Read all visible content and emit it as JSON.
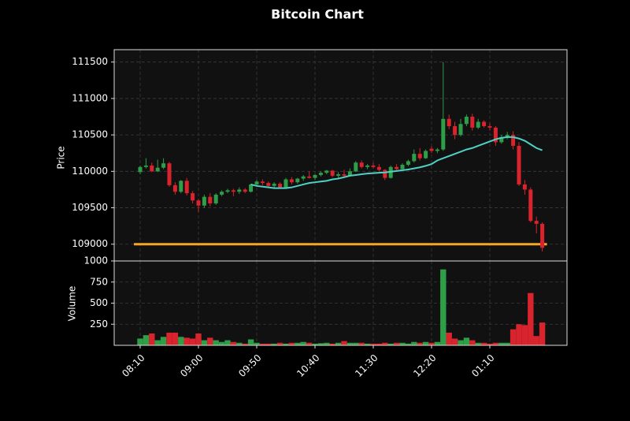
{
  "chart_data": {
    "type": "candlestick",
    "title": "Bitcoin Chart",
    "ylabel": "Price",
    "y2label": "Volume",
    "categories": [
      "08:10",
      null,
      null,
      null,
      null,
      null,
      null,
      null,
      null,
      null,
      "09:00",
      null,
      null,
      null,
      null,
      null,
      null,
      null,
      null,
      null,
      "09:50",
      null,
      null,
      null,
      null,
      null,
      null,
      null,
      null,
      null,
      "10:40",
      null,
      null,
      null,
      null,
      null,
      null,
      null,
      null,
      null,
      "11:30",
      null,
      null,
      null,
      null,
      null,
      null,
      null,
      null,
      null,
      "12:20",
      null,
      null,
      null,
      null,
      null,
      null,
      null,
      null,
      null,
      "01:10",
      null,
      null,
      null,
      null,
      null,
      null,
      null,
      null,
      null
    ],
    "open": [
      109990,
      110060,
      110080,
      110000,
      110050,
      110110,
      109810,
      109720,
      109870,
      109700,
      109600,
      109530,
      109650,
      109560,
      109680,
      109720,
      109740,
      109720,
      109750,
      109720,
      109820,
      109860,
      109840,
      109800,
      109830,
      109780,
      109890,
      109850,
      109900,
      109930,
      109910,
      109950,
      109980,
      110010,
      109940,
      109960,
      109940,
      110000,
      110120,
      110060,
      110080,
      110060,
      110020,
      109910,
      110060,
      110030,
      110090,
      110140,
      110240,
      110180,
      110310,
      110280,
      110300,
      110720,
      110620,
      110500,
      110650,
      110750,
      110600,
      110680,
      110620,
      110600,
      110400,
      110470,
      110500,
      110350,
      109820,
      109750,
      109320,
      109280
    ],
    "high": [
      110080,
      110180,
      110120,
      110160,
      110180,
      110130,
      109850,
      109880,
      109910,
      109730,
      109620,
      109680,
      109700,
      109700,
      109740,
      109760,
      109760,
      109780,
      109770,
      109830,
      109880,
      109890,
      109860,
      109850,
      109850,
      109910,
      109920,
      109910,
      109950,
      110000,
      109960,
      110000,
      110020,
      110020,
      109990,
      110020,
      110040,
      110140,
      110150,
      110100,
      110120,
      110100,
      110030,
      110080,
      110100,
      110110,
      110160,
      110300,
      110320,
      110300,
      110340,
      110320,
      111500,
      110780,
      110680,
      110720,
      110780,
      110790,
      110720,
      110700,
      110660,
      110620,
      110500,
      110540,
      110550,
      110400,
      109880,
      109780,
      109380,
      109300
    ],
    "low": [
      109960,
      110040,
      109990,
      109990,
      110030,
      109790,
      109680,
      109700,
      109670,
      109560,
      109440,
      109500,
      109520,
      109540,
      109660,
      109700,
      109660,
      109690,
      109700,
      109710,
      109790,
      109810,
      109780,
      109760,
      109770,
      109760,
      109820,
      109830,
      109870,
      109900,
      109880,
      109930,
      109960,
      109920,
      109910,
      109920,
      109930,
      109990,
      110040,
      110030,
      110040,
      110000,
      109880,
      109900,
      110000,
      110010,
      110070,
      110120,
      110150,
      110170,
      110250,
      110250,
      110280,
      110580,
      110440,
      110480,
      110620,
      110560,
      110580,
      110600,
      110560,
      110350,
      110380,
      110440,
      110300,
      109800,
      109680,
      109300,
      109150,
      108900
    ],
    "close": [
      110060,
      110080,
      110000,
      110050,
      110110,
      109810,
      109720,
      109870,
      109700,
      109600,
      109530,
      109650,
      109560,
      109680,
      109720,
      109740,
      109720,
      109750,
      109720,
      109820,
      109860,
      109840,
      109800,
      109830,
      109780,
      109890,
      109850,
      109900,
      109930,
      109910,
      109950,
      109980,
      110010,
      109940,
      109960,
      109940,
      110000,
      110120,
      110060,
      110080,
      110060,
      110020,
      109910,
      110060,
      110030,
      110090,
      110140,
      110240,
      110180,
      110280,
      110280,
      110300,
      110720,
      110620,
      110500,
      110650,
      110750,
      110600,
      110680,
      110620,
      110600,
      110400,
      110470,
      110500,
      110350,
      109820,
      109750,
      109320,
      109280,
      108950
    ],
    "volume": [
      80,
      120,
      140,
      60,
      100,
      150,
      150,
      100,
      90,
      80,
      140,
      60,
      90,
      60,
      40,
      60,
      40,
      30,
      20,
      70,
      30,
      20,
      20,
      20,
      30,
      20,
      30,
      30,
      40,
      30,
      20,
      25,
      30,
      20,
      30,
      50,
      30,
      30,
      30,
      20,
      20,
      20,
      30,
      20,
      30,
      30,
      20,
      40,
      30,
      40,
      30,
      40,
      900,
      150,
      80,
      60,
      90,
      60,
      30,
      30,
      20,
      30,
      30,
      30,
      190,
      250,
      240,
      620,
      110,
      270
    ],
    "ma": {
      "color": "#4fd1c5",
      "values": [
        null,
        null,
        null,
        null,
        null,
        null,
        null,
        null,
        null,
        null,
        null,
        null,
        null,
        null,
        null,
        null,
        null,
        null,
        null,
        109820,
        109800,
        109790,
        109780,
        109770,
        109770,
        109770,
        109780,
        109800,
        109820,
        109840,
        109850,
        109860,
        109870,
        109890,
        109900,
        109920,
        109940,
        109950,
        109960,
        109970,
        109975,
        109980,
        109985,
        109995,
        110005,
        110015,
        110025,
        110040,
        110055,
        110075,
        110100,
        110150,
        110180,
        110210,
        110240,
        110270,
        110300,
        110320,
        110350,
        110380,
        110410,
        110440,
        110460,
        110470,
        110470,
        110450,
        110420,
        110370,
        110320,
        110290
      ]
    },
    "hline": {
      "value": 109000,
      "color": "#f5a623"
    },
    "up_color": "#2e9e48",
    "down_color": "#d9232d",
    "ylim": [
      108770,
      111670
    ],
    "yticks": [
      109000,
      109500,
      110000,
      110500,
      111000,
      111500
    ],
    "y2lim": [
      0,
      1000
    ],
    "y2ticks": [
      250,
      500,
      750,
      1000
    ],
    "grid": true
  }
}
